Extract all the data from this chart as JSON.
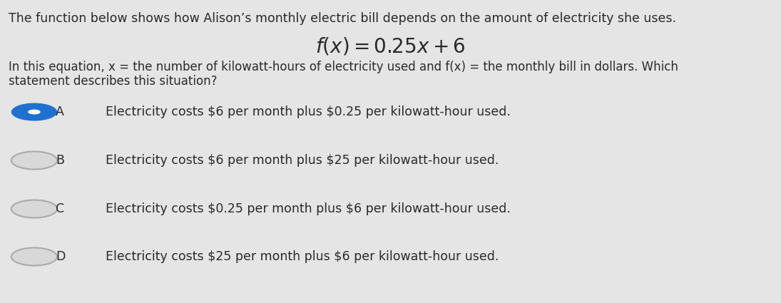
{
  "background_color": "#e5e5e5",
  "title_text": "The function below shows how Alison’s monthly electric bill depends on the amount of electricity she uses.",
  "equation_text": "$f(x) = 0.25x + 6$",
  "description_line1": "In this equation, x = the number of kilowatt-hours of electricity used and f(x) = the monthly bill in dollars. Which",
  "description_line2": "statement describes this situation?",
  "options": [
    {
      "label": "A",
      "text": "Electricity costs $6 per month plus $0.25 per kilowatt-hour used.",
      "selected": true
    },
    {
      "label": "B",
      "text": "Electricity costs $6 per month plus $25 per kilowatt-hour used.",
      "selected": false
    },
    {
      "label": "C",
      "text": "Electricity costs $0.25 per month plus $6 per kilowatt-hour used.",
      "selected": false
    },
    {
      "label": "D",
      "text": "Electricity costs $25 per month plus $6 per kilowatt-hour used.",
      "selected": false
    }
  ],
  "text_color": "#2a2a2a",
  "selected_fill_color": "#2070d0",
  "selected_dot_color": "#ffffff",
  "circle_edge_color": "#aaaaaa",
  "circle_fill_color": "#d8d8d8",
  "title_fontsize": 12.5,
  "equation_fontsize": 20,
  "desc_fontsize": 12.0,
  "option_fontsize": 12.5,
  "label_fontsize": 12.5
}
